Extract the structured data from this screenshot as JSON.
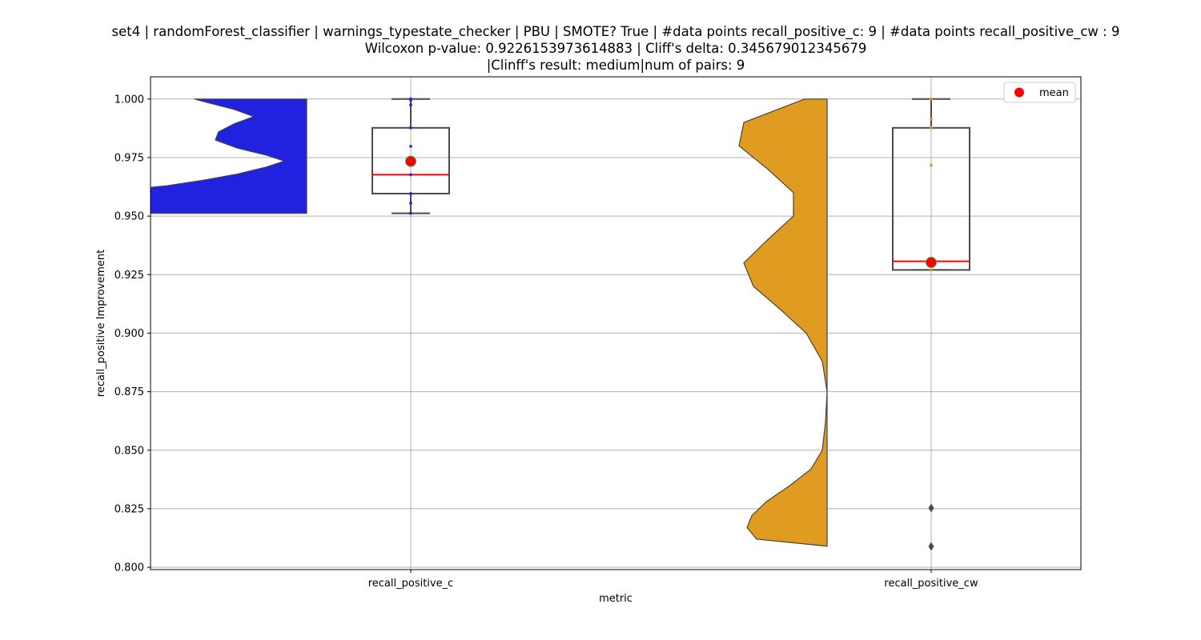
{
  "chart_data": {
    "type": "violin+box",
    "title_lines": [
      "set4 | randomForest_classifier | warnings_typestate_checker | PBU | SMOTE? True | #data points recall_positive_c: 9 | #data points recall_positive_cw : 9",
      "Wilcoxon p-value: 0.9226153973614883 | Cliff's delta: 0.345679012345679",
      "|Clinff's result: medium|num of pairs: 9"
    ],
    "xlabel": "metric",
    "ylabel": "recall_positive Improvement",
    "ylim": [
      0.799,
      1.0095
    ],
    "yticks": [
      0.8,
      0.825,
      0.85,
      0.875,
      0.9,
      0.925,
      0.95,
      0.975,
      1.0
    ],
    "ytick_labels": [
      "0.800",
      "0.825",
      "0.850",
      "0.875",
      "0.900",
      "0.925",
      "0.950",
      "0.975",
      "1.000"
    ],
    "categories": [
      "recall_positive_c",
      "recall_positive_cw"
    ],
    "grid": true,
    "legend": {
      "position": "top-right",
      "label": "mean"
    },
    "colors": {
      "violin_c": "#2121e0",
      "violin_cw": "#e09c21",
      "mean": "#ff0000",
      "median": "#ff0000",
      "box_edge": "#4a4a4a",
      "grid": "#b0b0b0"
    },
    "series": [
      {
        "name": "recall_positive_c",
        "violin_color": "#2121e0",
        "violin_side": "left",
        "violin_profile": [
          [
            0.9512,
            1.55
          ],
          [
            0.9525,
            1.53
          ],
          [
            0.955,
            1.38
          ],
          [
            0.958,
            1.27
          ],
          [
            0.9605,
            1.22
          ],
          [
            0.963,
            0.87
          ],
          [
            0.9655,
            0.63
          ],
          [
            0.968,
            0.43
          ],
          [
            0.971,
            0.25
          ],
          [
            0.9735,
            0.14
          ],
          [
            0.976,
            0.25
          ],
          [
            0.979,
            0.43
          ],
          [
            0.9825,
            0.57
          ],
          [
            0.986,
            0.55
          ],
          [
            0.9895,
            0.45
          ],
          [
            0.9925,
            0.33
          ],
          [
            0.9955,
            0.45
          ],
          [
            0.9985,
            0.62
          ],
          [
            1.0,
            0.7
          ]
        ],
        "box": {
          "q1": 0.9596,
          "median": 0.9677,
          "q3": 0.9877,
          "whisker_low": 0.9512,
          "whisker_high": 1.0
        },
        "mean": 0.9734,
        "points": [
          1.0,
          0.9975,
          0.9877,
          0.9798,
          0.9677,
          0.9596,
          0.9555,
          0.9512,
          0.9996
        ]
      },
      {
        "name": "recall_positive_cw",
        "violin_color": "#e09c21",
        "violin_side": "left",
        "violin_profile": [
          [
            0.809,
            0.0
          ],
          [
            0.812,
            0.44
          ],
          [
            0.817,
            0.5
          ],
          [
            0.822,
            0.47
          ],
          [
            0.828,
            0.38
          ],
          [
            0.835,
            0.23
          ],
          [
            0.842,
            0.1
          ],
          [
            0.85,
            0.03
          ],
          [
            0.862,
            0.01
          ],
          [
            0.875,
            0.0
          ],
          [
            0.888,
            0.03
          ],
          [
            0.9,
            0.13
          ],
          [
            0.91,
            0.29
          ],
          [
            0.92,
            0.46
          ],
          [
            0.93,
            0.52
          ],
          [
            0.94,
            0.37
          ],
          [
            0.95,
            0.21
          ],
          [
            0.96,
            0.21
          ],
          [
            0.97,
            0.37
          ],
          [
            0.98,
            0.55
          ],
          [
            0.99,
            0.52
          ],
          [
            1.0,
            0.14
          ]
        ],
        "box": {
          "q1": 0.927,
          "median": 0.9307,
          "q3": 0.9877,
          "whisker_low": 0.927,
          "whisker_high": 1.0
        },
        "mean": 0.9302,
        "points": [
          1.0,
          0.9915,
          0.9877,
          0.9717,
          0.9307,
          0.927
        ],
        "outliers": [
          0.8253,
          0.8089
        ]
      }
    ]
  }
}
